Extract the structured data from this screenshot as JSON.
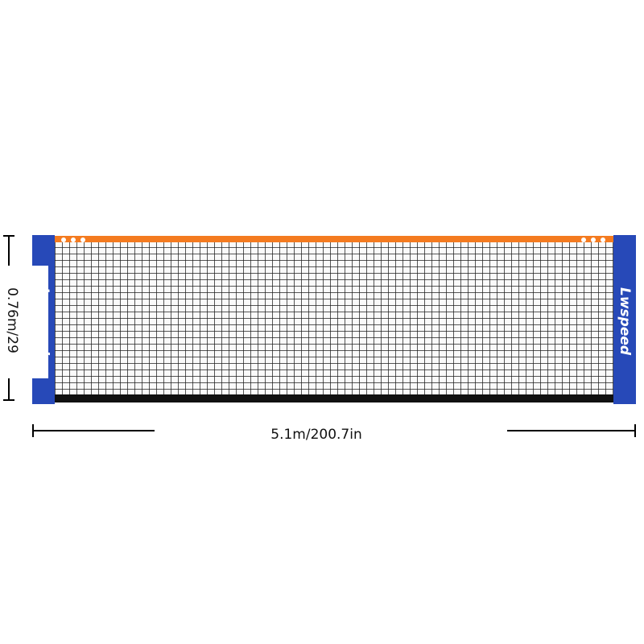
{
  "product": {
    "height_label": "0.76m/29",
    "width_label": "5.1m/200.7in",
    "logo_text": "Lwspeed",
    "colors": {
      "post": "#2749b8",
      "top_band": "#f47b20",
      "bottom_band": "#111111",
      "mesh": "#1e1e1e"
    }
  }
}
